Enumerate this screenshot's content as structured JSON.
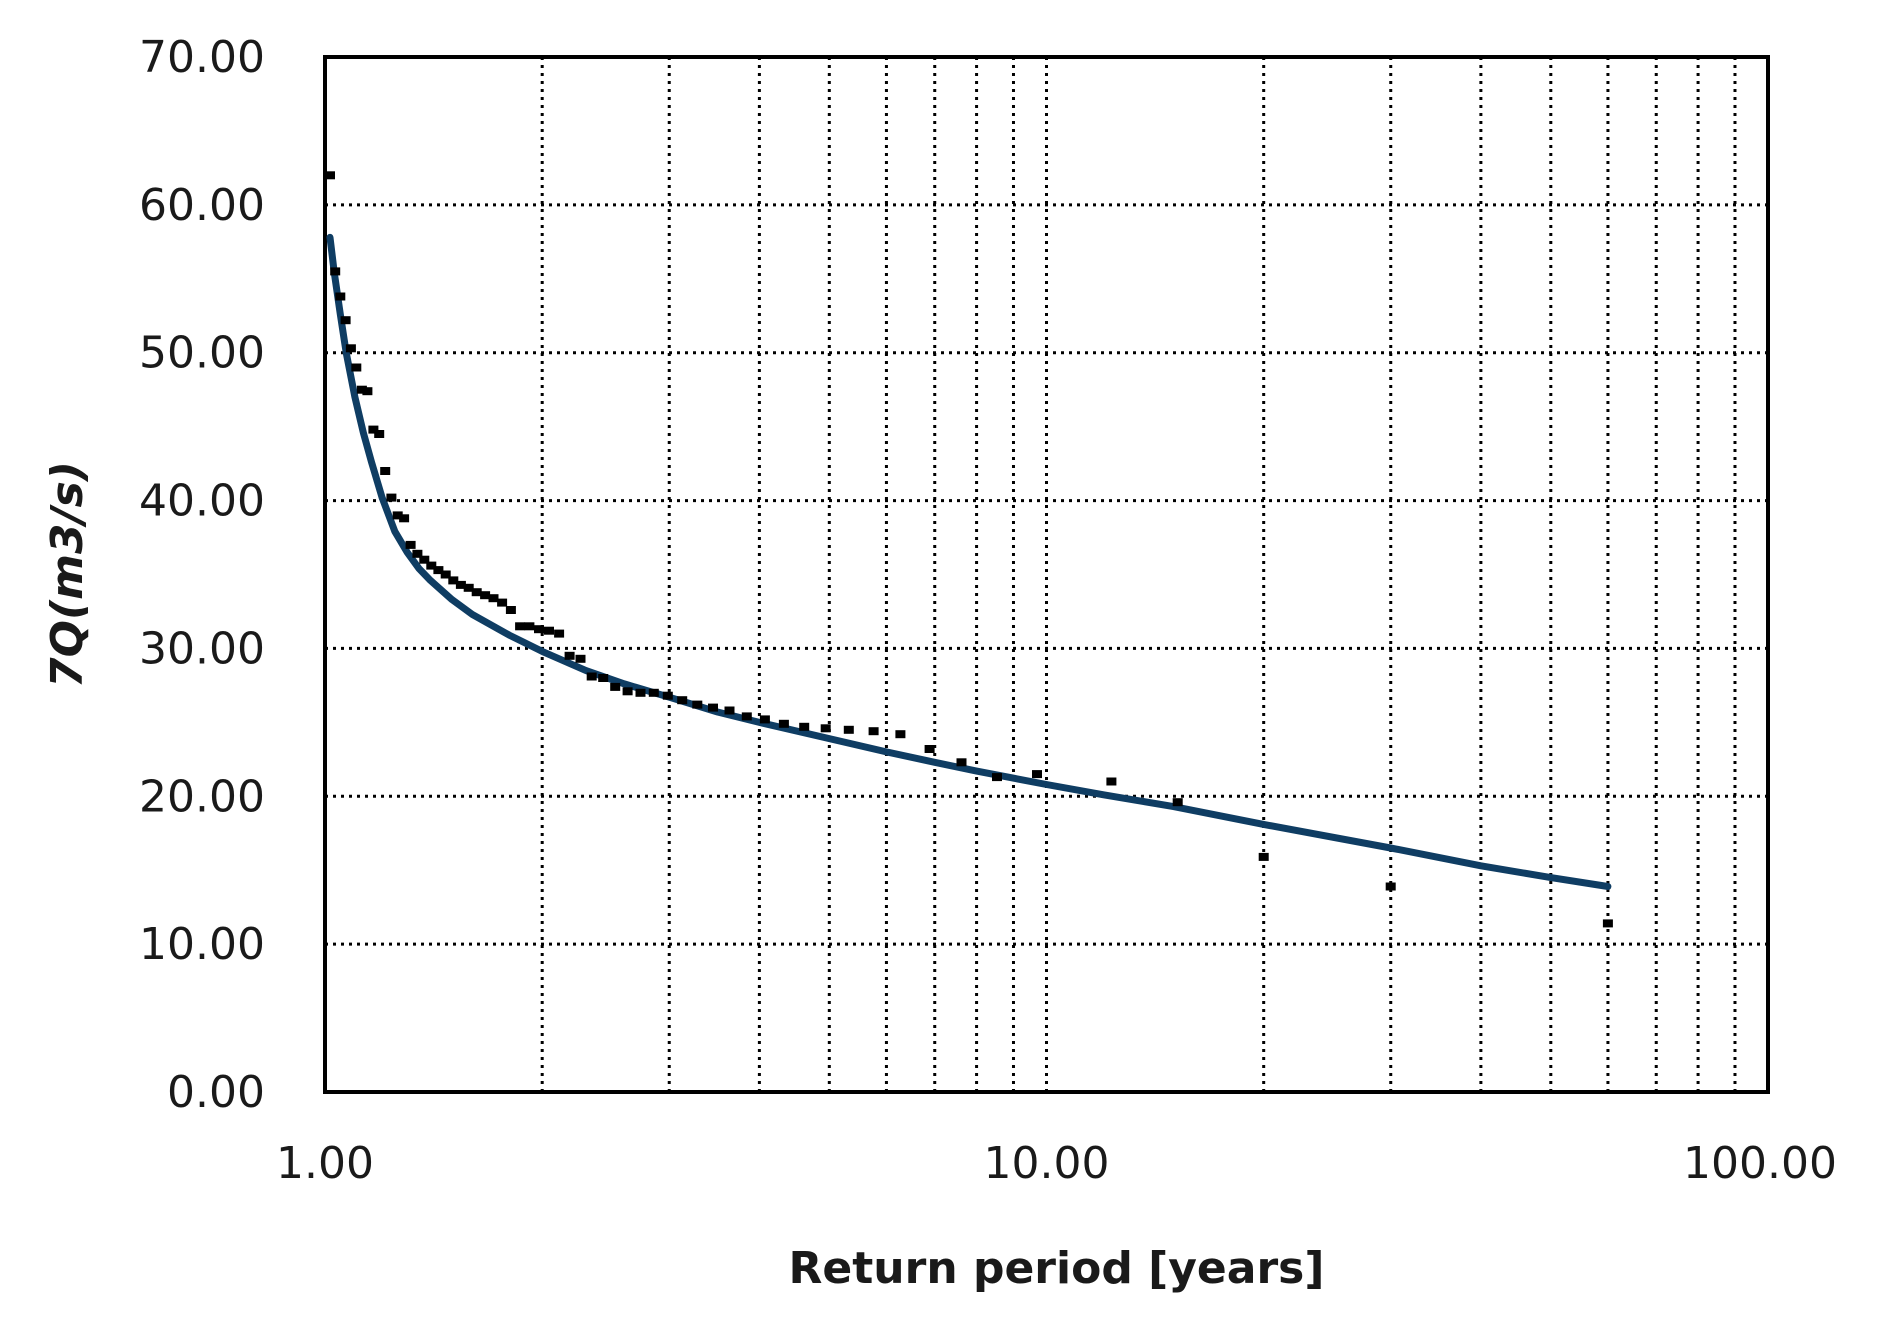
{
  "chart_data": {
    "type": "scatter",
    "title": "",
    "xlabel": "Return period [years]",
    "ylabel": "7Q(m3/s)",
    "x_scale": "log",
    "xlim": [
      1,
      100
    ],
    "ylim": [
      0,
      70
    ],
    "x_tick_values": [
      1,
      10,
      100
    ],
    "x_tick_labels": [
      "1.00",
      "10.00",
      "100.00"
    ],
    "y_tick_values": [
      0,
      10,
      20,
      30,
      40,
      50,
      60,
      70
    ],
    "y_tick_labels": [
      "0.00",
      "10.00",
      "20.00",
      "30.00",
      "40.00",
      "50.00",
      "60.00",
      "70.00"
    ],
    "grid": true,
    "legend": "none",
    "colors": {
      "fit": "#0f3d63",
      "points": "#000000"
    },
    "series": [
      {
        "type": "scatter",
        "x": [
          1.016,
          1.033,
          1.05,
          1.068,
          1.086,
          1.105,
          1.125,
          1.145,
          1.167,
          1.189,
          1.212,
          1.236,
          1.261,
          1.287,
          1.314,
          1.343,
          1.373,
          1.404,
          1.436,
          1.47,
          1.506,
          1.543,
          1.582,
          1.623,
          1.667,
          1.712,
          1.76,
          1.81,
          1.864,
          1.92,
          1.98,
          2.044,
          2.111,
          2.183,
          2.26,
          2.342,
          2.43,
          2.525,
          2.627,
          2.737,
          2.856,
          2.986,
          3.127,
          3.281,
          3.45,
          3.636,
          3.842,
          4.071,
          4.326,
          4.615,
          4.943,
          5.321,
          5.759,
          6.274,
          6.887,
          7.625,
          8.538,
          9.7,
          12.3,
          15.2,
          20.0,
          30.0,
          60.0
        ],
        "y": [
          62.0,
          55.5,
          53.8,
          52.2,
          50.3,
          49.0,
          47.5,
          47.4,
          44.8,
          44.5,
          42.0,
          40.2,
          39.0,
          38.8,
          37.0,
          36.4,
          36.0,
          35.6,
          35.3,
          35.0,
          34.6,
          34.3,
          34.1,
          33.8,
          33.6,
          33.4,
          33.1,
          32.6,
          31.5,
          31.5,
          31.3,
          31.2,
          31.0,
          29.5,
          29.3,
          28.1,
          28.0,
          27.4,
          27.1,
          27.0,
          27.0,
          26.8,
          26.5,
          26.2,
          26.0,
          25.8,
          25.4,
          25.2,
          24.9,
          24.7,
          24.6,
          24.5,
          24.4,
          24.2,
          23.2,
          22.3,
          21.3,
          21.5,
          21.0,
          19.6,
          15.9,
          13.9,
          11.4
        ]
      },
      {
        "type": "line",
        "x": [
          1.016,
          1.03,
          1.05,
          1.07,
          1.1,
          1.13,
          1.16,
          1.2,
          1.25,
          1.3,
          1.35,
          1.4,
          1.5,
          1.6,
          1.8,
          2.0,
          2.3,
          2.6,
          3.0,
          3.5,
          4.0,
          5.0,
          6.0,
          7.0,
          8.0,
          10.0,
          12.0,
          15.0,
          20.0,
          30.0,
          40.0,
          50.0,
          60.0
        ],
        "y": [
          57.8,
          55.4,
          52.6,
          50.0,
          47.0,
          44.6,
          42.6,
          40.2,
          37.9,
          36.5,
          35.4,
          34.6,
          33.3,
          32.3,
          30.9,
          29.8,
          28.5,
          27.6,
          26.7,
          25.7,
          25.0,
          23.9,
          23.0,
          22.3,
          21.7,
          20.8,
          20.1,
          19.3,
          18.1,
          16.5,
          15.3,
          14.5,
          13.9
        ]
      }
    ]
  }
}
